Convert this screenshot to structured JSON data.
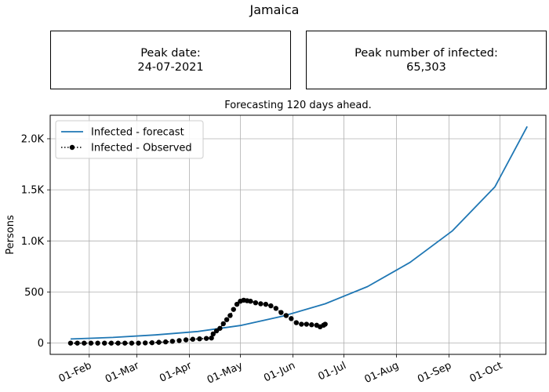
{
  "page": {
    "title": "Jamaica",
    "peak_date_label": "Peak date:",
    "peak_date_value": "24-07-2021",
    "peak_infected_label": "Peak number of infected:",
    "peak_infected_value": "65,303",
    "subtitle": "Forecasting 120 days ahead."
  },
  "chart_data": {
    "type": "line",
    "title": "Forecasting 120 days ahead.",
    "xlabel": "",
    "ylabel": "Persons",
    "x_ticks": [
      {
        "date": "2021-02-01",
        "label": "01-Feb"
      },
      {
        "date": "2021-03-01",
        "label": "01-Mar"
      },
      {
        "date": "2021-04-01",
        "label": "01-Apr"
      },
      {
        "date": "2021-05-01",
        "label": "01-May"
      },
      {
        "date": "2021-06-01",
        "label": "01-Jun"
      },
      {
        "date": "2021-07-01",
        "label": "01-Jul"
      },
      {
        "date": "2021-08-01",
        "label": "01-Aug"
      },
      {
        "date": "2021-09-01",
        "label": "01-Sep"
      },
      {
        "date": "2021-10-01",
        "label": "01-Oct"
      }
    ],
    "y_ticks": [
      {
        "value": 0,
        "label": "0"
      },
      {
        "value": 500,
        "label": "500"
      },
      {
        "value": 1000,
        "label": "1.0K"
      },
      {
        "value": 1500,
        "label": "1.5K"
      },
      {
        "value": 2000,
        "label": "2.0K"
      }
    ],
    "xlim": [
      "2021-01-09",
      "2021-10-28"
    ],
    "ylim": [
      -110,
      2230
    ],
    "grid": true,
    "legend_position": "top-left",
    "series": [
      {
        "name": "Infected - forecast",
        "style": "solid",
        "color": "#1f77b4",
        "points": [
          [
            "2021-01-21",
            40
          ],
          [
            "2021-02-15",
            56
          ],
          [
            "2021-03-12",
            80
          ],
          [
            "2021-04-06",
            114
          ],
          [
            "2021-05-01",
            172
          ],
          [
            "2021-05-26",
            264
          ],
          [
            "2021-06-20",
            385
          ],
          [
            "2021-07-15",
            554
          ],
          [
            "2021-08-09",
            790
          ],
          [
            "2021-09-03",
            1100
          ],
          [
            "2021-09-28",
            1530
          ],
          [
            "2021-10-17",
            2120
          ]
        ]
      },
      {
        "name": "Infected - Observed",
        "style": "dotted-markers",
        "color": "#000000",
        "points": [
          [
            "2021-01-21",
            0
          ],
          [
            "2021-01-25",
            0
          ],
          [
            "2021-01-29",
            0
          ],
          [
            "2021-02-02",
            0
          ],
          [
            "2021-02-06",
            0
          ],
          [
            "2021-02-10",
            0
          ],
          [
            "2021-02-14",
            0
          ],
          [
            "2021-02-18",
            0
          ],
          [
            "2021-02-22",
            0
          ],
          [
            "2021-02-26",
            0
          ],
          [
            "2021-03-02",
            0
          ],
          [
            "2021-03-06",
            2
          ],
          [
            "2021-03-10",
            4
          ],
          [
            "2021-03-14",
            8
          ],
          [
            "2021-03-18",
            12
          ],
          [
            "2021-03-22",
            18
          ],
          [
            "2021-03-26",
            25
          ],
          [
            "2021-03-30",
            32
          ],
          [
            "2021-04-03",
            38
          ],
          [
            "2021-04-07",
            42
          ],
          [
            "2021-04-11",
            46
          ],
          [
            "2021-04-14",
            50
          ],
          [
            "2021-04-15",
            90
          ],
          [
            "2021-04-17",
            120
          ],
          [
            "2021-04-19",
            145
          ],
          [
            "2021-04-21",
            190
          ],
          [
            "2021-04-23",
            230
          ],
          [
            "2021-04-25",
            270
          ],
          [
            "2021-04-27",
            330
          ],
          [
            "2021-04-29",
            380
          ],
          [
            "2021-05-01",
            410
          ],
          [
            "2021-05-03",
            420
          ],
          [
            "2021-05-05",
            415
          ],
          [
            "2021-05-07",
            410
          ],
          [
            "2021-05-10",
            395
          ],
          [
            "2021-05-13",
            385
          ],
          [
            "2021-05-16",
            380
          ],
          [
            "2021-05-19",
            365
          ],
          [
            "2021-05-22",
            340
          ],
          [
            "2021-05-25",
            300
          ],
          [
            "2021-05-28",
            270
          ],
          [
            "2021-05-31",
            240
          ],
          [
            "2021-06-03",
            200
          ],
          [
            "2021-06-06",
            185
          ],
          [
            "2021-06-09",
            185
          ],
          [
            "2021-06-12",
            180
          ],
          [
            "2021-06-15",
            175
          ],
          [
            "2021-06-17",
            160
          ],
          [
            "2021-06-19",
            175
          ],
          [
            "2021-06-20",
            185
          ]
        ]
      }
    ]
  }
}
